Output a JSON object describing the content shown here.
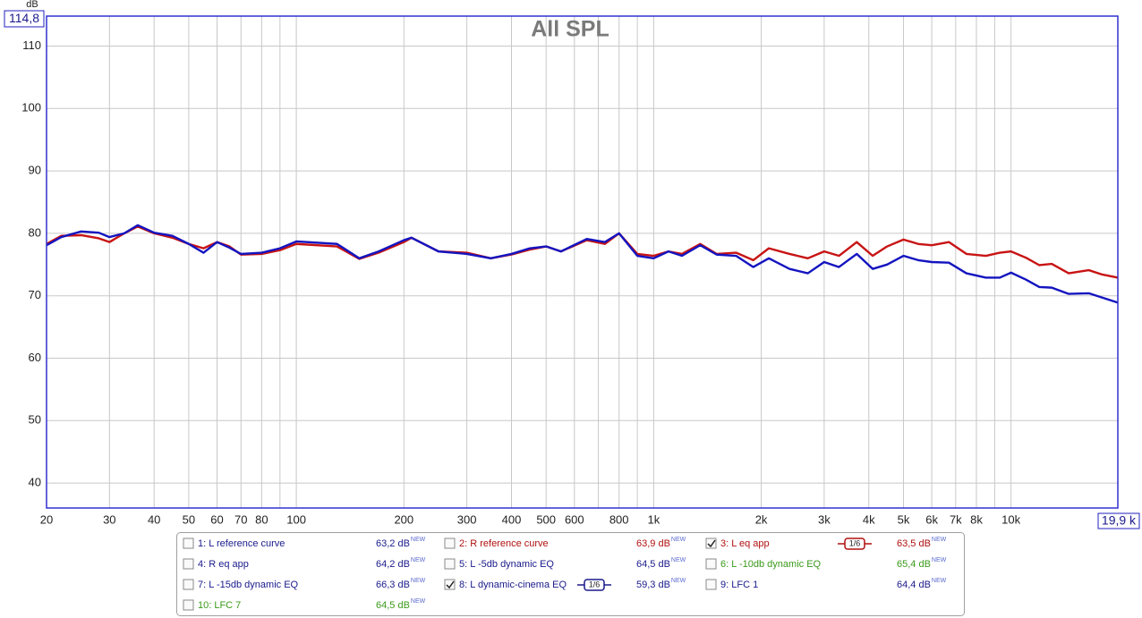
{
  "chart_data": {
    "type": "line",
    "title": "All SPL",
    "y_label": "dB",
    "y_max_label": "114,8",
    "x_max_label": "19,9 k",
    "x_scale": "log",
    "grid": true,
    "xlim": [
      20,
      19900
    ],
    "ylim": [
      36,
      114.8
    ],
    "yticks": [
      40,
      50,
      60,
      70,
      80,
      90,
      100,
      110
    ],
    "xticks": [
      20,
      30,
      40,
      50,
      60,
      70,
      80,
      100,
      200,
      300,
      400,
      500,
      600,
      800,
      {
        "value": 1000,
        "label": "1k"
      },
      {
        "value": 2000,
        "label": "2k"
      },
      {
        "value": 3000,
        "label": "3k"
      },
      {
        "value": 4000,
        "label": "4k"
      },
      {
        "value": 5000,
        "label": "5k"
      },
      {
        "value": 6000,
        "label": "6k"
      },
      {
        "value": 7000,
        "label": "7k"
      },
      {
        "value": 8000,
        "label": "8k"
      },
      {
        "value": 10000,
        "label": "10k"
      }
    ],
    "x_minor_grid": [
      90,
      700,
      900,
      9000
    ],
    "x": [
      20,
      22,
      25,
      28,
      30,
      33,
      36,
      40,
      45,
      50,
      55,
      60,
      65,
      70,
      80,
      90,
      100,
      130,
      150,
      170,
      200,
      210,
      250,
      300,
      350,
      400,
      450,
      500,
      550,
      650,
      730,
      800,
      900,
      1000,
      1100,
      1200,
      1350,
      1500,
      1700,
      1900,
      2100,
      2400,
      2700,
      3000,
      3300,
      3700,
      4100,
      4500,
      5000,
      5500,
      6000,
      6700,
      7500,
      8500,
      9300,
      10000,
      11000,
      12000,
      13000,
      14500,
      16500,
      18000,
      19900
    ],
    "series": [
      {
        "color": "#c81414",
        "values": [
          78.3,
          79.6,
          79.7,
          79.2,
          78.6,
          80,
          81.1,
          80,
          79.3,
          78.3,
          77.6,
          78.6,
          77.9,
          76.6,
          76.7,
          77.3,
          78.3,
          77.9,
          75.9,
          76.9,
          78.6,
          79.3,
          77.1,
          76.9,
          76,
          76.6,
          77.4,
          77.9,
          77.1,
          78.9,
          78.3,
          80,
          76.7,
          76.4,
          77.1,
          76.7,
          78.3,
          76.7,
          76.9,
          75.7,
          77.6,
          76.7,
          76,
          77.1,
          76.4,
          78.6,
          76.4,
          77.9,
          79,
          78.3,
          78.1,
          78.6,
          76.7,
          76.4,
          76.9,
          77.1,
          76.1,
          74.9,
          75.1,
          73.6,
          74.1,
          73.4,
          72.9
        ]
      },
      {
        "color": "#1414c0",
        "values": [
          78.1,
          79.4,
          80.3,
          80.1,
          79.4,
          80,
          81.3,
          80.1,
          79.6,
          78.3,
          76.9,
          78.6,
          77.7,
          76.7,
          76.9,
          77.6,
          78.7,
          78.3,
          76,
          77.1,
          78.9,
          79.3,
          77.1,
          76.7,
          76,
          76.7,
          77.6,
          77.9,
          77.1,
          79.1,
          78.6,
          80,
          76.4,
          76,
          77.1,
          76.4,
          78.1,
          76.6,
          76.4,
          74.6,
          76,
          74.3,
          73.6,
          75.4,
          74.6,
          76.7,
          74.3,
          75,
          76.4,
          75.7,
          75.4,
          75.3,
          73.6,
          72.9,
          72.9,
          73.7,
          72.6,
          71.4,
          71.3,
          70.3,
          70.4,
          69.7,
          68.9
        ]
      }
    ]
  },
  "legend_panel": {
    "badge": "NEW",
    "smoothing": "1/6",
    "entries": [
      {
        "name": "1: L reference curve",
        "level": "63,2 dB",
        "color": "#1a1a8c",
        "checked": false
      },
      {
        "name": "2: R reference curve",
        "level": "63,9 dB",
        "color": "#b01010",
        "checked": false
      },
      {
        "name": "3: L eq app",
        "level": "63,5 dB",
        "color": "#b01010",
        "checked": true,
        "smoothed": true
      },
      {
        "name": "4: R eq app",
        "level": "64,2 dB",
        "color": "#1a1a8c",
        "checked": false
      },
      {
        "name": "5: L -5db dynamic EQ",
        "level": "64,5 dB",
        "color": "#1a1a8c",
        "checked": false
      },
      {
        "name": "6: L -10db dynamic EQ",
        "level": "65,4 dB",
        "color": "#3a9a1a",
        "checked": false
      },
      {
        "name": "7: L -15db dynamic EQ",
        "level": "66,3 dB",
        "color": "#1a1a8c",
        "checked": false
      },
      {
        "name": "8: L dynamic-cinema EQ",
        "level": "59,3 dB",
        "color": "#1a1a8c",
        "checked": true,
        "smoothed": true
      },
      {
        "name": "9: LFC 1",
        "level": "64,4 dB",
        "color": "#1a1a8c",
        "checked": false
      },
      {
        "name": "10: LFC 7",
        "level": "64,5 dB",
        "color": "#3a9a1a",
        "checked": false
      }
    ]
  }
}
